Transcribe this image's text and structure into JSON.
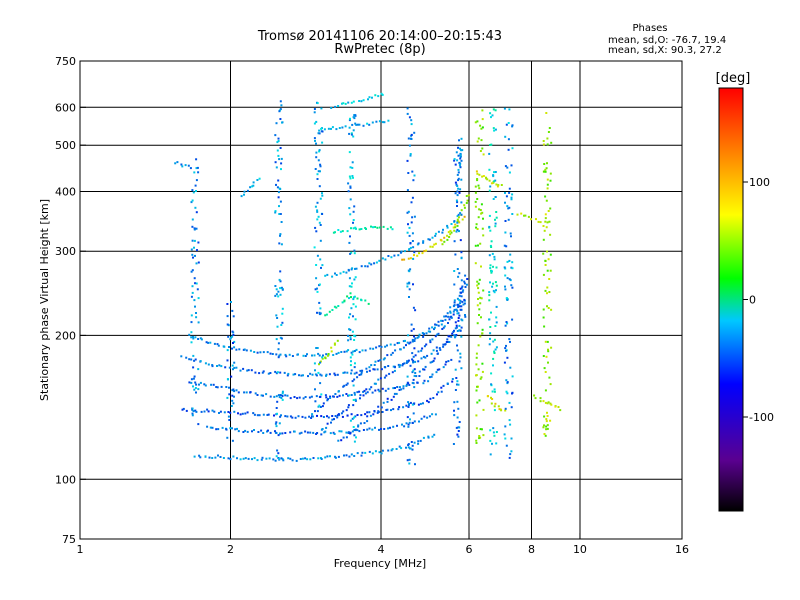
{
  "chart_data": {
    "type": "scatter",
    "title": "Tromsø 20141106 20:14:00–20:15:43",
    "subtitle": "RwPretec (8p)",
    "xlabel": "Frequency [MHz]",
    "ylabel": "Stationary phase Virtual Height [km]",
    "x_scale": "log",
    "y_scale": "log",
    "xlim": [
      1,
      16
    ],
    "ylim": [
      75,
      750
    ],
    "x_ticks": [
      1,
      2,
      4,
      6,
      8,
      10,
      16
    ],
    "y_ticks": [
      75,
      100,
      200,
      300,
      400,
      500,
      600,
      750
    ],
    "x_gridlines": [
      2,
      4,
      6,
      8,
      10
    ],
    "y_gridlines": [
      100,
      200,
      300,
      400,
      500,
      600
    ],
    "grid": true,
    "phases_box": {
      "heading": "Phases",
      "line_o": "mean, sd,O: -76.7, 19.4",
      "line_x": "mean, sd,X:  90.3, 27.2"
    },
    "colorbar": {
      "label": "[deg]",
      "ticks": [
        100,
        0,
        -100
      ],
      "range": [
        -180,
        180
      ]
    },
    "traces": [
      {
        "x": [
          1.65,
          1.9,
          2.2,
          2.6,
          3.2,
          3.9,
          4.6,
          5.4,
          5.9
        ],
        "y": [
          200,
          190,
          185,
          182,
          182,
          188,
          195,
          215,
          240
        ],
        "phase": -95
      },
      {
        "x": [
          1.6,
          1.9,
          2.25,
          2.7,
          3.3,
          4.0,
          4.8,
          5.5,
          5.95
        ],
        "y": [
          180,
          172,
          168,
          165,
          166,
          170,
          178,
          195,
          225
        ],
        "phase": -100
      },
      {
        "x": [
          1.65,
          1.95,
          2.3,
          2.8,
          3.4,
          4.1,
          4.9,
          5.6
        ],
        "y": [
          160,
          155,
          150,
          148,
          150,
          154,
          160,
          180
        ],
        "phase": -105
      },
      {
        "x": [
          1.6,
          2.0,
          2.4,
          2.9,
          3.5,
          4.2,
          5.0,
          5.7
        ],
        "y": [
          140,
          138,
          136,
          135,
          136,
          140,
          146,
          165
        ],
        "phase": -110
      },
      {
        "x": [
          1.8,
          2.2,
          2.7,
          3.2,
          3.8,
          4.5,
          5.2
        ],
        "y": [
          128,
          126,
          125,
          125,
          127,
          130,
          138
        ],
        "phase": -100
      },
      {
        "x": [
          1.7,
          2.0,
          2.4,
          2.9,
          3.4,
          4.0,
          4.6,
          5.2
        ],
        "y": [
          112,
          111,
          110,
          110,
          112,
          114,
          118,
          125
        ],
        "phase": -90
      },
      {
        "x": [
          2.9,
          3.2,
          3.6,
          4.0,
          4.5,
          5.0,
          5.5,
          5.95
        ],
        "y": [
          135,
          150,
          165,
          178,
          190,
          205,
          225,
          260
        ],
        "phase": -100
      },
      {
        "x": [
          3.0,
          3.4,
          3.8,
          4.2,
          4.7,
          5.2,
          5.7,
          5.95
        ],
        "y": [
          125,
          140,
          155,
          168,
          182,
          200,
          228,
          270
        ],
        "phase": -105
      },
      {
        "x": [
          3.3,
          3.7,
          4.1,
          4.6,
          5.1,
          5.6,
          5.9
        ],
        "y": [
          120,
          132,
          145,
          160,
          178,
          205,
          240
        ],
        "phase": -110
      },
      {
        "x": [
          3.1,
          3.4,
          3.8,
          4.2,
          4.6,
          5.0,
          5.4,
          5.8
        ],
        "y": [
          265,
          272,
          282,
          293,
          305,
          318,
          335,
          360
        ],
        "phase": -90
      },
      {
        "x": [
          4.4,
          4.7,
          5.0,
          5.3,
          5.6,
          5.9
        ],
        "y": [
          288,
          295,
          305,
          318,
          335,
          360
        ],
        "phase": 105
      },
      {
        "x": [
          5.3,
          5.5,
          5.7,
          5.85,
          6.0
        ],
        "y": [
          310,
          325,
          345,
          370,
          400
        ],
        "phase": 70
      },
      {
        "x": [
          5.65,
          5.7,
          5.75,
          5.8
        ],
        "y": [
          380,
          420,
          460,
          500
        ],
        "phase": -95
      },
      {
        "x": [
          3.0,
          3.1,
          3.2,
          3.3
        ],
        "y": [
          175,
          180,
          188,
          196
        ],
        "phase": 70
      },
      {
        "x": [
          3.1,
          3.3,
          3.5,
          3.8
        ],
        "y": [
          220,
          232,
          244,
          232
        ],
        "phase": -30
      },
      {
        "x": [
          3.2,
          3.6,
          4.0,
          4.3
        ],
        "y": [
          330,
          335,
          338,
          332
        ],
        "phase": -40
      },
      {
        "x": [
          3.0,
          3.4,
          3.8,
          4.2
        ],
        "y": [
          540,
          545,
          555,
          560
        ],
        "phase": -80
      },
      {
        "x": [
          3.2,
          3.5,
          3.8,
          4.1
        ],
        "y": [
          600,
          615,
          630,
          640
        ],
        "phase": -70
      },
      {
        "x": [
          1.55,
          1.65,
          1.75
        ],
        "y": [
          460,
          450,
          445
        ],
        "phase": -90
      },
      {
        "x": [
          2.1,
          2.2,
          2.3
        ],
        "y": [
          390,
          410,
          430
        ],
        "phase": -80
      },
      {
        "x": [
          6.2,
          6.4,
          6.6,
          6.8,
          7.0
        ],
        "y": [
          440,
          430,
          420,
          415,
          410
        ],
        "phase": 90
      },
      {
        "x": [
          6.5,
          6.7,
          6.9,
          7.1
        ],
        "y": [
          150,
          145,
          140,
          138
        ],
        "phase": 95
      },
      {
        "x": [
          8.1,
          8.5,
          8.9,
          9.2
        ],
        "y": [
          150,
          145,
          142,
          140
        ],
        "phase": 80
      },
      {
        "x": [
          7.5,
          8.0,
          8.5
        ],
        "y": [
          360,
          350,
          345
        ],
        "phase": 80
      }
    ],
    "columns": [
      {
        "x": 1.7,
        "y": [
          130,
          470
        ],
        "phase": -95
      },
      {
        "x": 2.0,
        "y": [
          120,
          240
        ],
        "phase": -100
      },
      {
        "x": 2.5,
        "y": [
          110,
          620
        ],
        "phase": -90
      },
      {
        "x": 3.0,
        "y": [
          140,
          620
        ],
        "phase": -85
      },
      {
        "x": 3.5,
        "y": [
          110,
          600
        ],
        "phase": -80
      },
      {
        "x": 4.6,
        "y": [
          105,
          600
        ],
        "phase": -95
      },
      {
        "x": 5.7,
        "y": [
          110,
          520
        ],
        "phase": -100
      },
      {
        "x": 6.3,
        "y": [
          115,
          600
        ],
        "phase": 60
      },
      {
        "x": 6.7,
        "y": [
          105,
          620
        ],
        "phase": -60
      },
      {
        "x": 7.2,
        "y": [
          110,
          600
        ],
        "phase": -90
      },
      {
        "x": 8.6,
        "y": [
          120,
          600
        ],
        "phase": 70
      }
    ]
  }
}
